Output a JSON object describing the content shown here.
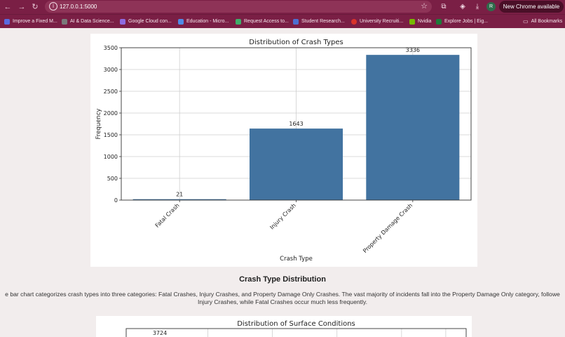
{
  "browser": {
    "url": "127.0.0.1:5000",
    "update_label": "New Chrome available",
    "profile_initial": "R"
  },
  "bookmarks": {
    "items": [
      {
        "label": "Improve a Fixed M...",
        "color": "#5a6be0"
      },
      {
        "label": "AI & Data Science...",
        "color": "#7a7a7a"
      },
      {
        "label": "Google Cloud con...",
        "color": "#8e6be0"
      },
      {
        "label": "Education - Micro...",
        "color": "#4f8be6"
      },
      {
        "label": "Request Access to...",
        "color": "#3fae6a"
      },
      {
        "label": "Student Research...",
        "color": "#4d6fd1"
      },
      {
        "label": "University Recruiti...",
        "color": "#d9332b"
      },
      {
        "label": "Nvidia",
        "color": "#76b900"
      },
      {
        "label": "Explore Jobs | Eig...",
        "color": "#1d7a3a"
      }
    ],
    "all_bookmarks_label": "All Bookmarks"
  },
  "content": {
    "section_title": "Crash Type Distribution",
    "section_description_line1": "e bar chart categorizes crash types into three categories: Fatal Crashes, Injury Crashes, and Property Damage Only Crashes. The vast majority of incidents fall into the Property Damage Only category, followe",
    "section_description_line2": "Injury Crashes, while Fatal Crashes occur much less frequently."
  },
  "chart_data": [
    {
      "type": "bar",
      "title": "Distribution of Crash Types",
      "xlabel": "Crash Type",
      "ylabel": "Frequency",
      "categories": [
        "Fatal Crash",
        "Injury Crash",
        "Property Damage Crash"
      ],
      "values": [
        21,
        1643,
        3336
      ],
      "data_labels": [
        "21",
        "1643",
        "3336"
      ],
      "ylim": [
        0,
        3500
      ],
      "yticks": [
        0,
        500,
        1000,
        1500,
        2000,
        2500,
        3000,
        3500
      ],
      "bar_color": "#4273a0",
      "grid": true
    },
    {
      "type": "bar",
      "title": "Distribution of Surface Conditions",
      "data_labels": [
        "3724"
      ],
      "values": [
        3724
      ],
      "bar_color": "#4273a0",
      "grid": true
    }
  ]
}
